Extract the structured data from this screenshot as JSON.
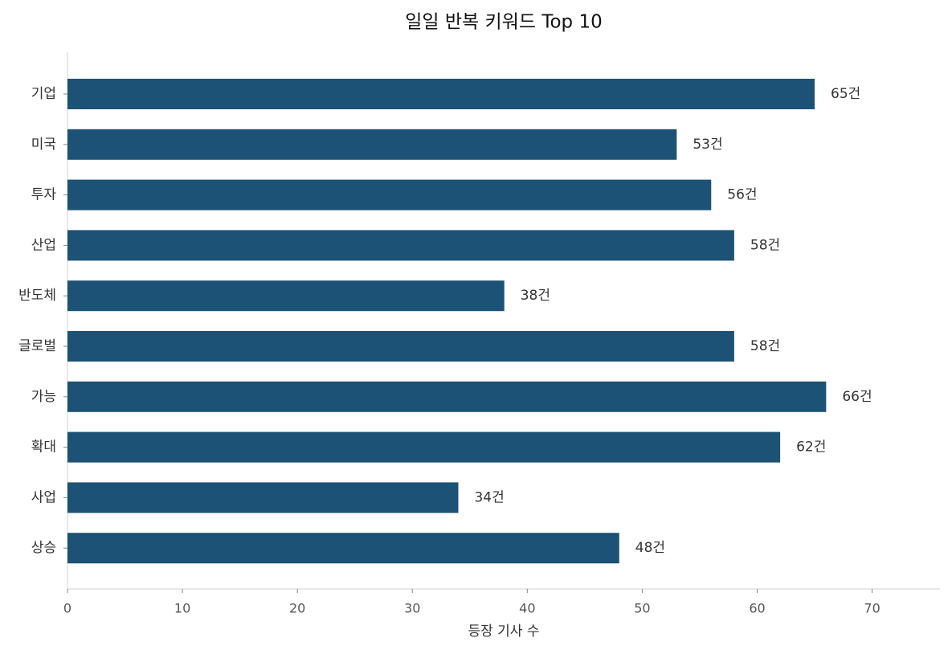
{
  "chart_data": {
    "type": "barh",
    "title": "일일 반복 키워드 Top 10",
    "x_label": "등장 기사 수",
    "categories": [
      "기업",
      "미국",
      "투자",
      "산업",
      "반도체",
      "글로벌",
      "가능",
      "확대",
      "사업",
      "상승"
    ],
    "values": [
      65,
      53,
      56,
      58,
      38,
      58,
      66,
      62,
      34,
      48
    ],
    "value_labels": [
      "65건",
      "53건",
      "56건",
      "58건",
      "38건",
      "58건",
      "66건",
      "62건",
      "34건",
      "48건"
    ],
    "color": "#1c5276",
    "xlim": [
      0,
      75.9
    ],
    "xticks": [
      0,
      10,
      20,
      30,
      40,
      50,
      60,
      70
    ]
  }
}
